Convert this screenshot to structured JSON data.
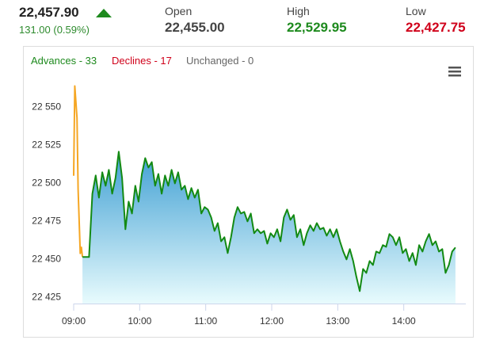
{
  "header": {
    "price": "22,457.90",
    "change": "131.00 (0.59%)",
    "stats": [
      {
        "label": "Open",
        "value": "22,455.00"
      },
      {
        "label": "High",
        "value": "22,529.95"
      },
      {
        "label": "Low",
        "value": "22,427.75"
      }
    ]
  },
  "breadth": {
    "advances": "Advances - 33",
    "declines": "Declines - 17",
    "unchanged": "Unchanged - 0"
  },
  "chart_data": {
    "type": "line",
    "xlim": [
      "09:00",
      "15:00"
    ],
    "xticks": [
      "09:00",
      "10:00",
      "11:00",
      "12:00",
      "13:00",
      "14:00"
    ],
    "ylim": [
      22421,
      22570
    ],
    "yticks": [
      {
        "value": 22425,
        "label": "22 425"
      },
      {
        "value": 22450,
        "label": "22 450"
      },
      {
        "value": 22475,
        "label": "22 475"
      },
      {
        "value": 22500,
        "label": "22 500"
      },
      {
        "value": 22525,
        "label": "22 525"
      },
      {
        "value": 22550,
        "label": "22 550"
      }
    ],
    "series": [
      {
        "color": "#f5a623",
        "x": [
          "09:00",
          "09:01",
          "09:03",
          "09:04",
          "09:06",
          "09:07",
          "09:08"
        ],
        "values": [
          22505,
          22564,
          22543,
          22496,
          22454,
          22458,
          22451.6
        ]
      },
      {
        "color": "#138a13",
        "fill": true,
        "x": [
          "09:08",
          "09:14",
          "09:17",
          "09:20",
          "09:23",
          "09:26",
          "09:29",
          "09:32",
          "09:35",
          "09:38",
          "09:41",
          "09:44",
          "09:47",
          "09:50",
          "09:53",
          "09:56",
          "09:59",
          "10:02",
          "10:05",
          "10:08",
          "10:11",
          "10:14",
          "10:17",
          "10:20",
          "10:23",
          "10:26",
          "10:29",
          "10:32",
          "10:35",
          "10:38",
          "10:41",
          "10:44",
          "10:47",
          "10:50",
          "10:53",
          "10:56",
          "10:59",
          "11:02",
          "11:05",
          "11:08",
          "11:11",
          "11:14",
          "11:17",
          "11:20",
          "11:23",
          "11:26",
          "11:29",
          "11:32",
          "11:35",
          "11:38",
          "11:41",
          "11:44",
          "11:47",
          "11:50",
          "11:53",
          "11:56",
          "11:59",
          "12:02",
          "12:05",
          "12:08",
          "12:11",
          "12:14",
          "12:17",
          "12:20",
          "12:23",
          "12:26",
          "12:29",
          "12:32",
          "12:35",
          "12:38",
          "12:41",
          "12:44",
          "12:47",
          "12:50",
          "12:53",
          "12:56",
          "12:59",
          "13:02",
          "13:05",
          "13:08",
          "13:11",
          "13:14",
          "13:17",
          "13:20",
          "13:23",
          "13:26",
          "13:29",
          "13:32",
          "13:35",
          "13:38",
          "13:41",
          "13:44",
          "13:47",
          "13:50",
          "13:53",
          "13:56",
          "13:59",
          "14:02",
          "14:05",
          "14:08",
          "14:11",
          "14:14",
          "14:17",
          "14:20",
          "14:23",
          "14:26",
          "14:29",
          "14:32",
          "14:35",
          "14:38",
          "14:41",
          "14:44",
          "14:47"
        ],
        "values": [
          22451.6,
          22451.6,
          22493.2,
          22505.2,
          22490.6,
          22507.3,
          22498.4,
          22508.9,
          22493.2,
          22503.6,
          22520.8,
          22503.6,
          22469.8,
          22488.0,
          22480.2,
          22498.4,
          22488.0,
          22506.2,
          22516.6,
          22510.4,
          22514.0,
          22498.4,
          22506.2,
          22493.2,
          22505.2,
          22498.4,
          22508.9,
          22500.0,
          22507.3,
          22495.8,
          22498.4,
          22489.6,
          22496.9,
          22490.6,
          22495.8,
          22480.2,
          22484.4,
          22482.8,
          22477.6,
          22468.7,
          22473.9,
          22461.9,
          22464.6,
          22454.2,
          22464.6,
          22477.6,
          22484.4,
          22480.2,
          22481.2,
          22475.0,
          22480.2,
          22467.2,
          22469.8,
          22467.2,
          22468.7,
          22460.4,
          22467.2,
          22464.6,
          22469.8,
          22461.9,
          22477.6,
          22482.8,
          22476.0,
          22479.2,
          22464.6,
          22469.8,
          22459.4,
          22467.2,
          22472.4,
          22468.7,
          22473.9,
          22469.8,
          22470.8,
          22465.6,
          22469.8,
          22464.6,
          22469.8,
          22461.9,
          22455.2,
          22450.0,
          22456.8,
          22448.9,
          22438.5,
          22429.2,
          22443.7,
          22441.1,
          22448.9,
          22446.3,
          22455.2,
          22454.2,
          22459.4,
          22458.3,
          22466.7,
          22464.6,
          22459.4,
          22464.6,
          22454.2,
          22456.8,
          22448.9,
          22454.2,
          22446.3,
          22459.4,
          22455.2,
          22461.9,
          22466.7,
          22459.4,
          22461.9,
          22455.2,
          22456.8,
          22441.1,
          22446.3,
          22455.2,
          22457.9
        ]
      }
    ]
  }
}
